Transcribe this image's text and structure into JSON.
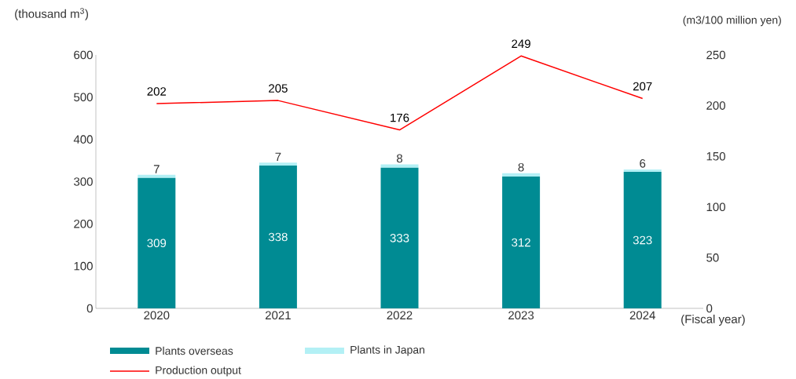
{
  "chart_data": {
    "type": "bar",
    "stacked": true,
    "ylabel": "(thousand m$^{3}$)",
    "y2label": "(m3/100 million yen)",
    "xlabel": "(Fiscal year)",
    "categories": [
      "2020",
      "2021",
      "2022",
      "2023",
      "2024"
    ],
    "series": [
      {
        "name": "Plants overseas",
        "color": "#008b93",
        "values": [
          309,
          338,
          333,
          312,
          323
        ]
      },
      {
        "name": "Plants in Japan",
        "color": "#b3f0f5",
        "values": [
          7,
          7,
          8,
          8,
          6
        ]
      },
      {
        "name": "Production output",
        "type": "line",
        "axis": "y2",
        "color": "#ff0000",
        "marker": "none",
        "line_style": "solid",
        "values": [
          202,
          205,
          176,
          249,
          207
        ]
      }
    ],
    "ylim": [
      0,
      600
    ],
    "yticks": [
      0,
      100,
      200,
      300,
      400,
      500,
      600
    ],
    "y2lim": [
      0,
      250
    ],
    "y2ticks": [
      0,
      50,
      100,
      150,
      200,
      250
    ],
    "data_labels": true,
    "legend": "bottom",
    "grid": false
  }
}
